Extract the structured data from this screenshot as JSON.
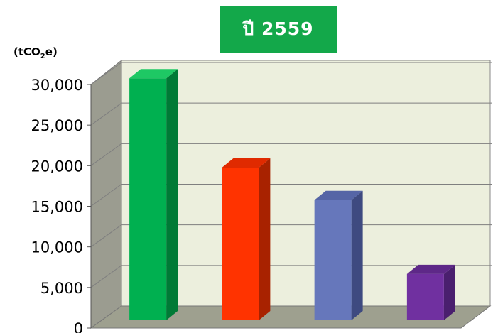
{
  "chart_data": {
    "type": "bar",
    "title": "ปี 2559",
    "ylabel_prefix": "(tCO",
    "ylabel_sub": "2",
    "ylabel_suffix": "e)",
    "ylim": [
      0,
      30000
    ],
    "yticks": [
      0,
      5000,
      10000,
      15000,
      20000,
      25000,
      30000
    ],
    "ytick_labels": [
      "0",
      "5,000",
      "10,000",
      "15,000",
      "20,000",
      "25,000",
      "30,000"
    ],
    "grid": true,
    "values": [
      29800,
      18800,
      14800,
      5700
    ],
    "colors": [
      {
        "front": "#00b050",
        "side": "#007a36",
        "top": "#1ec864"
      },
      {
        "front": "#ff3300",
        "side": "#a82200",
        "top": "#e02a00"
      },
      {
        "front": "#6677bb",
        "side": "#3e4a80",
        "top": "#5565a6"
      },
      {
        "front": "#7030a0",
        "side": "#4a1f6e",
        "top": "#5e2888"
      }
    ]
  }
}
